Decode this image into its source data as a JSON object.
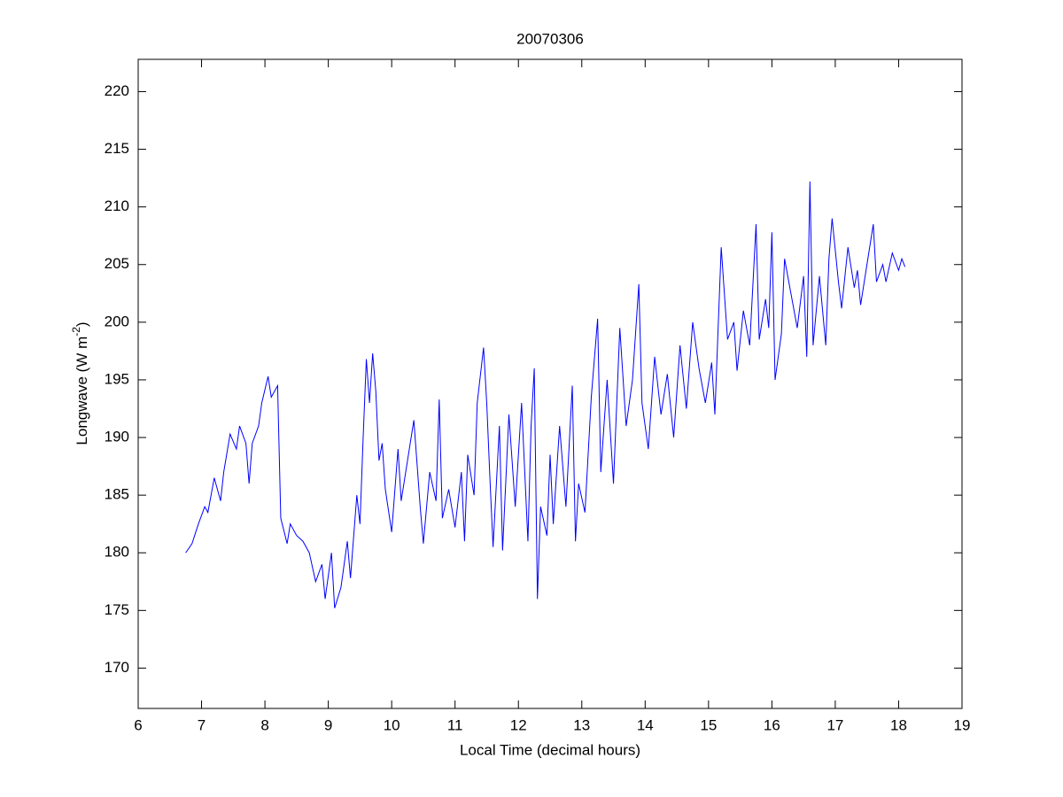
{
  "chart_data": {
    "type": "line",
    "title": "20070306",
    "xlabel": "Local Time (decimal hours)",
    "ylabel_parts": [
      "Longwave (W m",
      "-2",
      ")"
    ],
    "color": "#0000ff",
    "xlim": [
      6,
      19
    ],
    "xticks": [
      6,
      7,
      8,
      9,
      10,
      11,
      12,
      13,
      14,
      15,
      16,
      17,
      18,
      19
    ],
    "ylim": [
      166.5,
      222.8
    ],
    "yticks": [
      170,
      175,
      180,
      185,
      190,
      195,
      200,
      205,
      210,
      215,
      220
    ],
    "grid": false,
    "x": [
      6.75,
      6.85,
      6.95,
      7.05,
      7.1,
      7.2,
      7.3,
      7.35,
      7.45,
      7.55,
      7.6,
      7.7,
      7.75,
      7.8,
      7.9,
      7.95,
      8.05,
      8.1,
      8.2,
      8.25,
      8.35,
      8.4,
      8.5,
      8.6,
      8.7,
      8.8,
      8.9,
      8.95,
      9.05,
      9.1,
      9.2,
      9.3,
      9.35,
      9.45,
      9.5,
      9.55,
      9.6,
      9.65,
      9.7,
      9.75,
      9.8,
      9.85,
      9.9,
      10.0,
      10.1,
      10.15,
      10.25,
      10.35,
      10.45,
      10.5,
      10.6,
      10.7,
      10.75,
      10.8,
      10.9,
      11.0,
      11.1,
      11.15,
      11.2,
      11.3,
      11.35,
      11.45,
      11.5,
      11.55,
      11.6,
      11.7,
      11.75,
      11.85,
      11.95,
      12.05,
      12.15,
      12.2,
      12.25,
      12.3,
      12.35,
      12.45,
      12.5,
      12.55,
      12.65,
      12.75,
      12.85,
      12.9,
      12.95,
      13.05,
      13.15,
      13.25,
      13.3,
      13.4,
      13.5,
      13.6,
      13.7,
      13.8,
      13.9,
      13.95,
      14.05,
      14.15,
      14.25,
      14.35,
      14.45,
      14.55,
      14.65,
      14.75,
      14.85,
      14.95,
      15.05,
      15.1,
      15.2,
      15.3,
      15.4,
      15.45,
      15.55,
      15.65,
      15.75,
      15.8,
      15.9,
      15.95,
      16.0,
      16.05,
      16.15,
      16.2,
      16.3,
      16.4,
      16.5,
      16.55,
      16.6,
      16.65,
      16.75,
      16.85,
      16.9,
      16.95,
      17.05,
      17.1,
      17.2,
      17.3,
      17.35,
      17.4,
      17.5,
      17.6,
      17.65,
      17.75,
      17.8,
      17.9,
      18.0,
      18.05,
      18.1
    ],
    "values": [
      180,
      180.8,
      182.5,
      184,
      183.5,
      186.5,
      184.5,
      187,
      190.3,
      189,
      191,
      189.5,
      186,
      189.5,
      191,
      193,
      195.3,
      193.5,
      194.5,
      183,
      180.8,
      182.5,
      181.5,
      181,
      180,
      177.5,
      179,
      176,
      180,
      175.2,
      177,
      181,
      177.8,
      185,
      182.5,
      190,
      196.8,
      193,
      197.3,
      194,
      188,
      189.5,
      185.5,
      181.8,
      189,
      184.5,
      188,
      191.5,
      184,
      180.8,
      187,
      184.5,
      193.3,
      183,
      185.5,
      182.2,
      187,
      181,
      188.5,
      185,
      193,
      197.8,
      193,
      186.5,
      180.5,
      191,
      180.2,
      192,
      184,
      193,
      181,
      191,
      196,
      176,
      184,
      181.5,
      188.5,
      182.5,
      191,
      184,
      194.5,
      181,
      186,
      183.5,
      193.5,
      200.3,
      187,
      195,
      186,
      199.5,
      191,
      195,
      203.3,
      193,
      189,
      197,
      192,
      195.5,
      190,
      198,
      192.5,
      200,
      196,
      193,
      196.5,
      192,
      206.5,
      198.5,
      200,
      195.8,
      201,
      198,
      208.5,
      198.5,
      202,
      199.5,
      207.8,
      195,
      199,
      205.5,
      202.5,
      199.5,
      204,
      197,
      212.2,
      198,
      204,
      198,
      205.5,
      209,
      203.5,
      201.2,
      206.5,
      203,
      204.5,
      201.5,
      205,
      208.5,
      203.5,
      205,
      203.5,
      206,
      204.5,
      205.5,
      204.8
    ]
  }
}
